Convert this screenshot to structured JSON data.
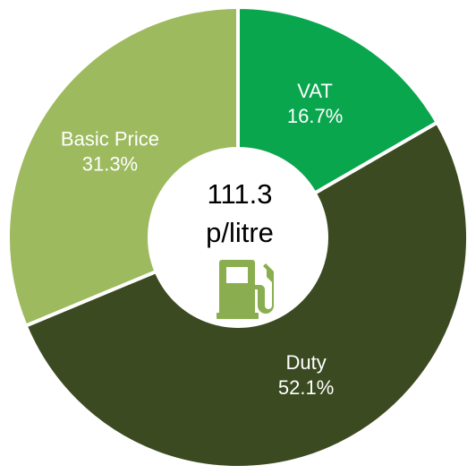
{
  "chart_data": {
    "type": "donut",
    "categories": [
      "VAT",
      "Duty",
      "Basic Price"
    ],
    "values": [
      16.7,
      52.1,
      31.3
    ],
    "value_labels": [
      "16.7%",
      "52.1%",
      "31.3%"
    ],
    "colors": [
      "#09a64e",
      "#3b4a20",
      "#9dba5e"
    ],
    "center_label": [
      "111.3",
      "p/litre"
    ]
  }
}
